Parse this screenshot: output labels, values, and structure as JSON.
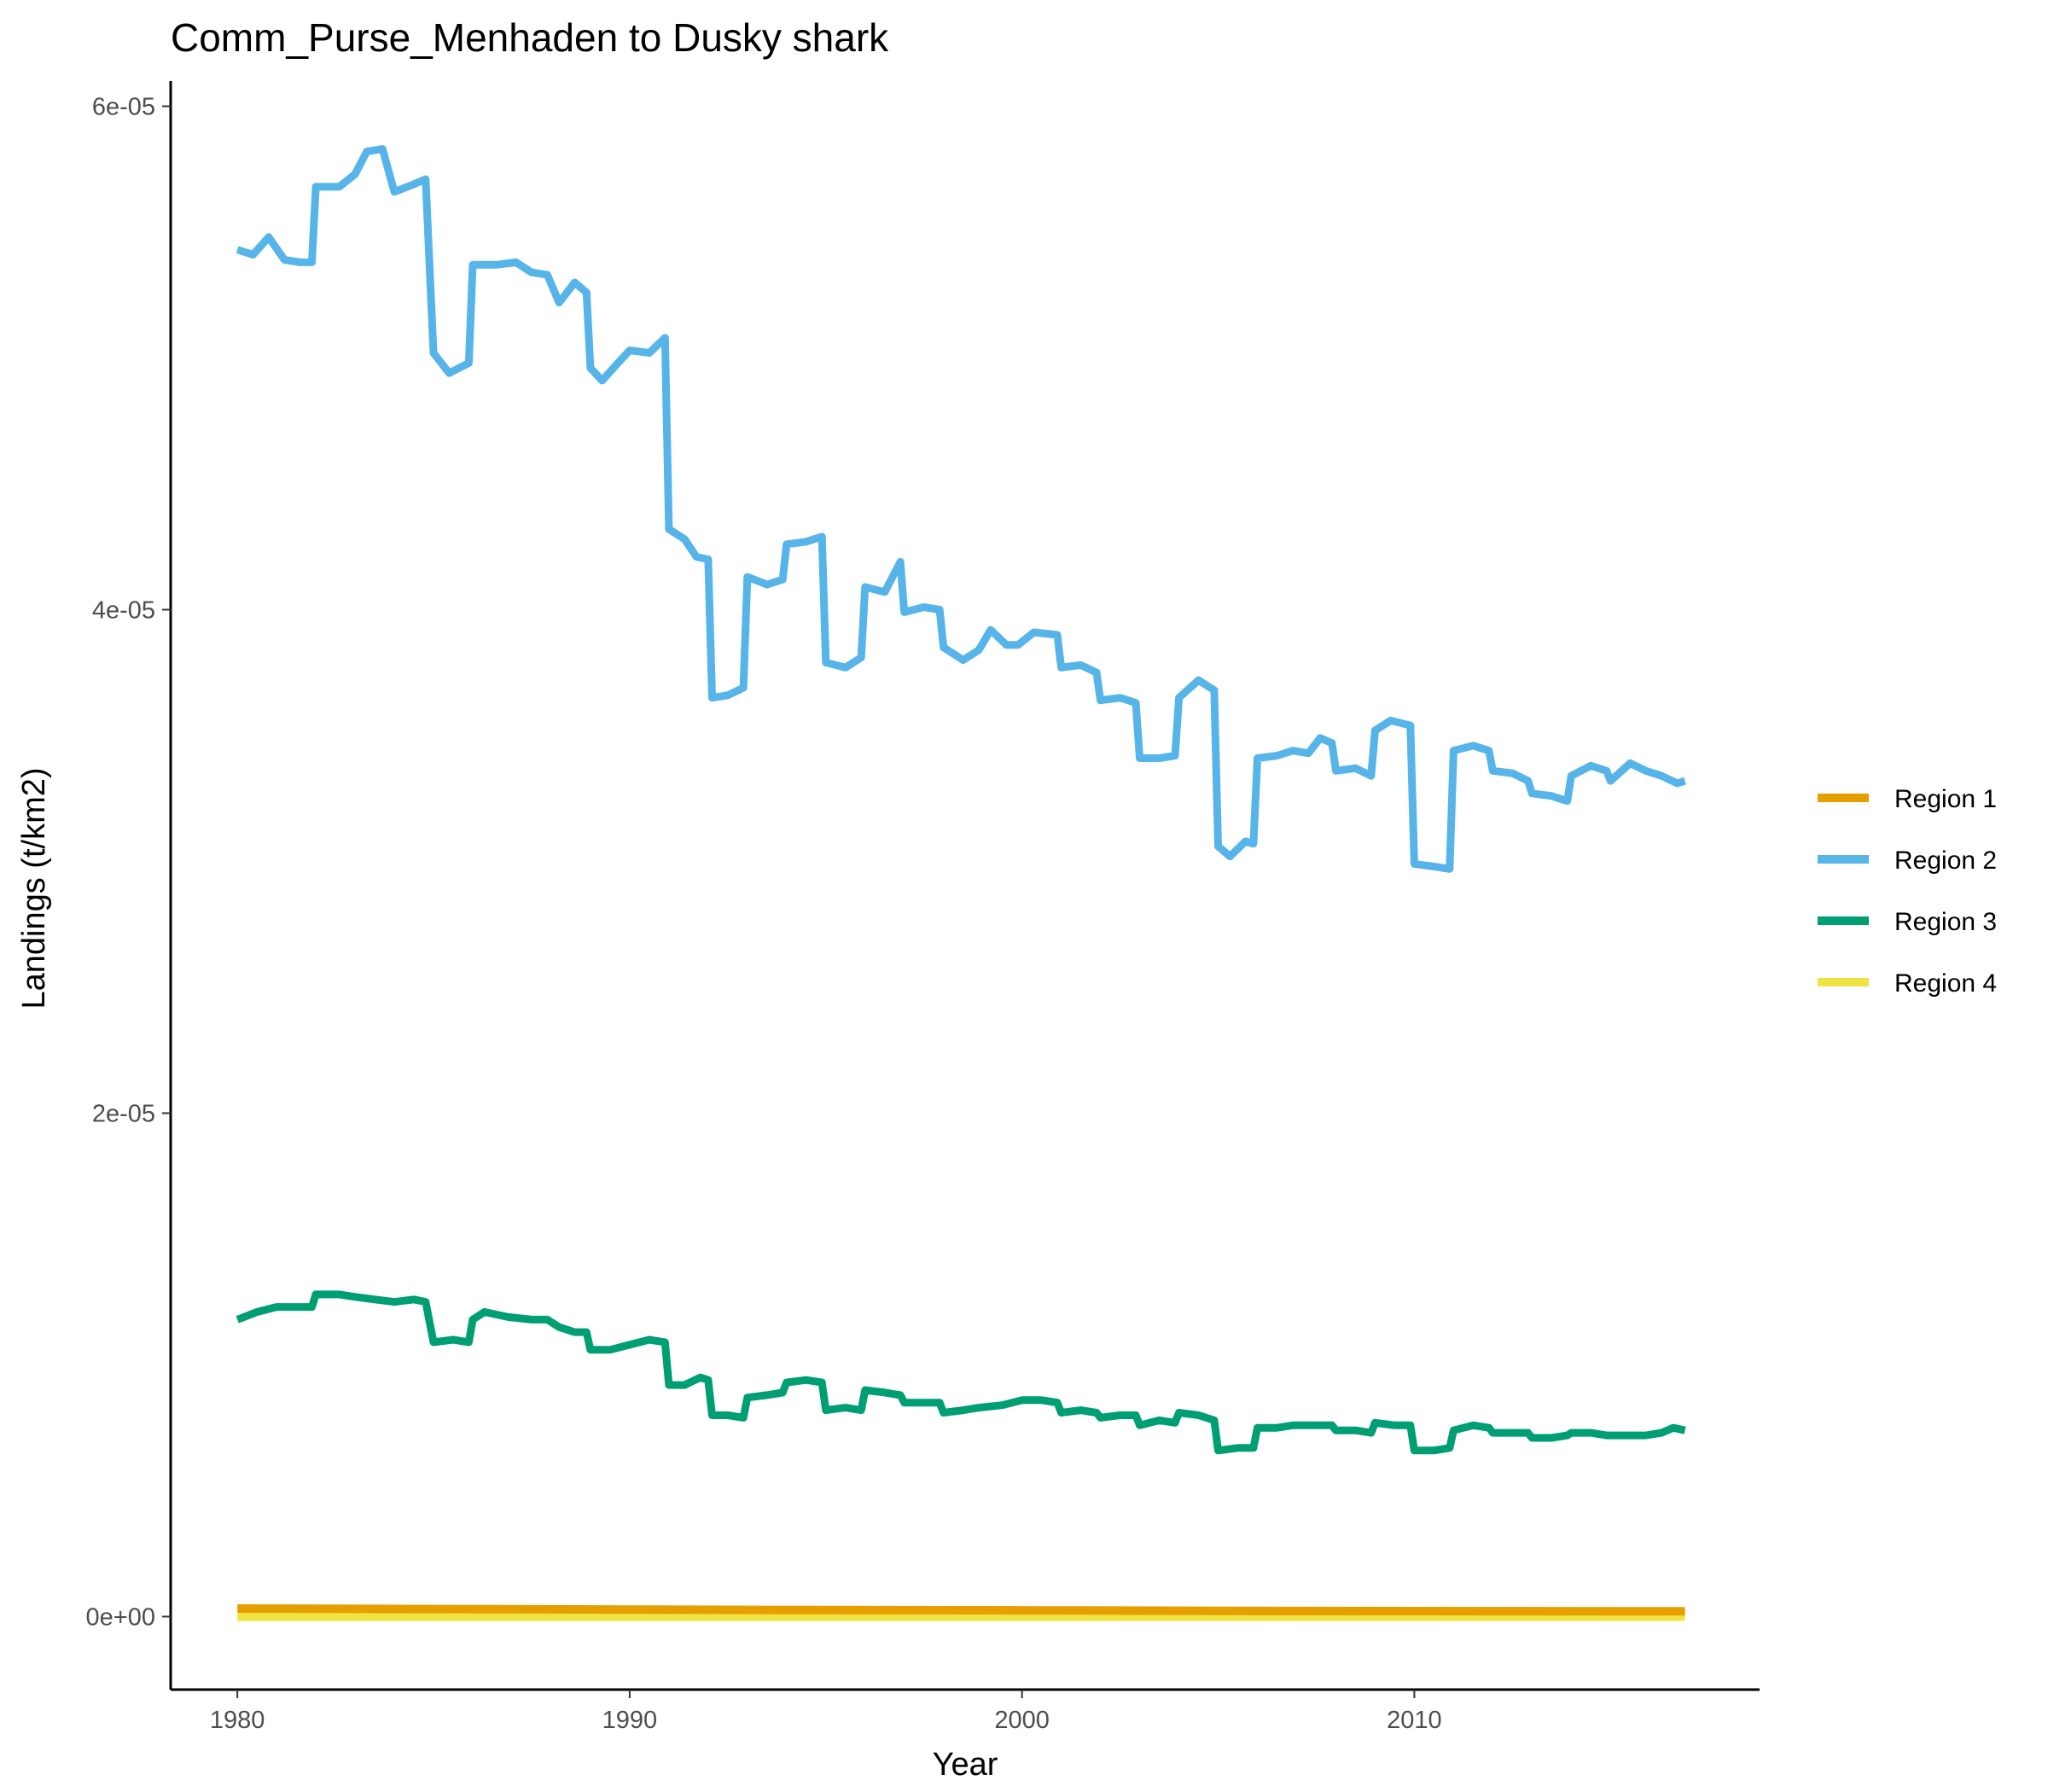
{
  "chart_data": {
    "type": "line",
    "title": "Comm_Purse_Menhaden to Dusky shark",
    "xlabel": "Year",
    "ylabel": "Landings (t/km2)",
    "xlim": [
      1978.3,
      2018.8
    ],
    "ylim": [
      -2.9e-06,
      6.1e-05
    ],
    "x_ticks": [
      1980,
      1990,
      2000,
      2010
    ],
    "y_ticks": [
      {
        "value": 0,
        "label": "0e+00"
      },
      {
        "value": 2e-05,
        "label": "2e-05"
      },
      {
        "value": 4e-05,
        "label": "4e-05"
      },
      {
        "value": 6e-05,
        "label": "6e-05"
      }
    ],
    "grid": false,
    "legend_position": "right",
    "series": [
      {
        "name": "Region 1",
        "color": "#E69F00",
        "points": [
          [
            1980.0,
            3.2e-07
          ],
          [
            1985.0,
            3e-07
          ],
          [
            1990.0,
            2.8e-07
          ],
          [
            1995.0,
            2.6e-07
          ],
          [
            2000.0,
            2.5e-07
          ],
          [
            2005.0,
            2.3e-07
          ],
          [
            2010.0,
            2.2e-07
          ],
          [
            2016.9,
            2.1e-07
          ]
        ]
      },
      {
        "name": "Region 2",
        "color": "#56B4E9",
        "points": [
          [
            1980.0,
            5.43e-05
          ],
          [
            1980.4,
            5.41e-05
          ],
          [
            1980.8,
            5.48e-05
          ],
          [
            1981.2,
            5.39e-05
          ],
          [
            1981.6,
            5.38e-05
          ],
          [
            1981.9,
            5.38e-05
          ],
          [
            1982.0,
            5.68e-05
          ],
          [
            1982.6,
            5.68e-05
          ],
          [
            1983.0,
            5.73e-05
          ],
          [
            1983.3,
            5.82e-05
          ],
          [
            1983.7,
            5.83e-05
          ],
          [
            1984.0,
            5.66e-05
          ],
          [
            1984.5,
            5.69e-05
          ],
          [
            1984.8,
            5.71e-05
          ],
          [
            1985.0,
            5.02e-05
          ],
          [
            1985.4,
            4.94e-05
          ],
          [
            1985.9,
            4.98e-05
          ],
          [
            1986.0,
            5.37e-05
          ],
          [
            1986.6,
            5.37e-05
          ],
          [
            1987.1,
            5.38e-05
          ],
          [
            1987.5,
            5.34e-05
          ],
          [
            1987.9,
            5.33e-05
          ],
          [
            1988.2,
            5.22e-05
          ],
          [
            1988.6,
            5.3e-05
          ],
          [
            1988.9,
            5.26e-05
          ],
          [
            1989.0,
            4.96e-05
          ],
          [
            1989.3,
            4.91e-05
          ],
          [
            1989.7,
            4.98e-05
          ],
          [
            1990.0,
            5.03e-05
          ],
          [
            1990.5,
            5.02e-05
          ],
          [
            1990.9,
            5.08e-05
          ],
          [
            1991.0,
            4.32e-05
          ],
          [
            1991.4,
            4.28e-05
          ],
          [
            1991.7,
            4.21e-05
          ],
          [
            1992.0,
            4.2e-05
          ],
          [
            1992.1,
            3.65e-05
          ],
          [
            1992.5,
            3.66e-05
          ],
          [
            1992.9,
            3.69e-05
          ],
          [
            1993.0,
            4.13e-05
          ],
          [
            1993.5,
            4.1e-05
          ],
          [
            1993.9,
            4.12e-05
          ],
          [
            1994.0,
            4.26e-05
          ],
          [
            1994.5,
            4.27e-05
          ],
          [
            1994.9,
            4.29e-05
          ],
          [
            1995.0,
            3.79e-05
          ],
          [
            1995.5,
            3.77e-05
          ],
          [
            1995.9,
            3.81e-05
          ],
          [
            1996.0,
            4.09e-05
          ],
          [
            1996.5,
            4.07e-05
          ],
          [
            1996.9,
            4.19e-05
          ],
          [
            1997.0,
            3.99e-05
          ],
          [
            1997.5,
            4.01e-05
          ],
          [
            1997.9,
            4e-05
          ],
          [
            1998.0,
            3.85e-05
          ],
          [
            1998.5,
            3.8e-05
          ],
          [
            1998.9,
            3.84e-05
          ],
          [
            1999.2,
            3.92e-05
          ],
          [
            1999.6,
            3.86e-05
          ],
          [
            1999.9,
            3.86e-05
          ],
          [
            2000.3,
            3.91e-05
          ],
          [
            2000.9,
            3.9e-05
          ],
          [
            2001.0,
            3.77e-05
          ],
          [
            2001.5,
            3.78e-05
          ],
          [
            2001.9,
            3.75e-05
          ],
          [
            2002.0,
            3.64e-05
          ],
          [
            2002.5,
            3.65e-05
          ],
          [
            2002.9,
            3.63e-05
          ],
          [
            2003.0,
            3.41e-05
          ],
          [
            2003.5,
            3.41e-05
          ],
          [
            2003.9,
            3.42e-05
          ],
          [
            2004.0,
            3.65e-05
          ],
          [
            2004.5,
            3.72e-05
          ],
          [
            2004.9,
            3.68e-05
          ],
          [
            2005.0,
            3.06e-05
          ],
          [
            2005.3,
            3.02e-05
          ],
          [
            2005.7,
            3.08e-05
          ],
          [
            2005.9,
            3.07e-05
          ],
          [
            2006.0,
            3.41e-05
          ],
          [
            2006.5,
            3.42e-05
          ],
          [
            2006.9,
            3.44e-05
          ],
          [
            2007.3,
            3.43e-05
          ],
          [
            2007.6,
            3.49e-05
          ],
          [
            2007.9,
            3.47e-05
          ],
          [
            2008.0,
            3.36e-05
          ],
          [
            2008.5,
            3.37e-05
          ],
          [
            2008.9,
            3.34e-05
          ],
          [
            2009.0,
            3.52e-05
          ],
          [
            2009.4,
            3.56e-05
          ],
          [
            2009.9,
            3.54e-05
          ],
          [
            2010.0,
            2.99e-05
          ],
          [
            2010.5,
            2.98e-05
          ],
          [
            2010.9,
            2.97e-05
          ],
          [
            2011.0,
            3.44e-05
          ],
          [
            2011.5,
            3.46e-05
          ],
          [
            2011.9,
            3.44e-05
          ],
          [
            2012.0,
            3.36e-05
          ],
          [
            2012.5,
            3.35e-05
          ],
          [
            2012.9,
            3.32e-05
          ],
          [
            2013.0,
            3.27e-05
          ],
          [
            2013.5,
            3.26e-05
          ],
          [
            2013.9,
            3.24e-05
          ],
          [
            2014.0,
            3.34e-05
          ],
          [
            2014.5,
            3.38e-05
          ],
          [
            2014.9,
            3.36e-05
          ],
          [
            2015.0,
            3.32e-05
          ],
          [
            2015.5,
            3.39e-05
          ],
          [
            2015.9,
            3.36e-05
          ],
          [
            2016.3,
            3.34e-05
          ],
          [
            2016.7,
            3.31e-05
          ],
          [
            2016.9,
            3.32e-05
          ]
        ]
      },
      {
        "name": "Region 3",
        "color": "#009E73",
        "points": [
          [
            1980.0,
            1.18e-05
          ],
          [
            1980.5,
            1.21e-05
          ],
          [
            1981.0,
            1.23e-05
          ],
          [
            1981.6,
            1.23e-05
          ],
          [
            1981.9,
            1.23e-05
          ],
          [
            1982.0,
            1.28e-05
          ],
          [
            1982.6,
            1.28e-05
          ],
          [
            1983.0,
            1.27e-05
          ],
          [
            1983.5,
            1.26e-05
          ],
          [
            1984.0,
            1.25e-05
          ],
          [
            1984.5,
            1.26e-05
          ],
          [
            1984.8,
            1.25e-05
          ],
          [
            1985.0,
            1.09e-05
          ],
          [
            1985.5,
            1.1e-05
          ],
          [
            1985.9,
            1.09e-05
          ],
          [
            1986.0,
            1.18e-05
          ],
          [
            1986.3,
            1.21e-05
          ],
          [
            1986.9,
            1.19e-05
          ],
          [
            1987.5,
            1.18e-05
          ],
          [
            1987.9,
            1.18e-05
          ],
          [
            1988.2,
            1.15e-05
          ],
          [
            1988.6,
            1.13e-05
          ],
          [
            1988.9,
            1.13e-05
          ],
          [
            1989.0,
            1.06e-05
          ],
          [
            1989.5,
            1.06e-05
          ],
          [
            1990.0,
            1.08e-05
          ],
          [
            1990.5,
            1.1e-05
          ],
          [
            1990.9,
            1.09e-05
          ],
          [
            1991.0,
            9.2e-06
          ],
          [
            1991.4,
            9.2e-06
          ],
          [
            1991.8,
            9.5e-06
          ],
          [
            1992.0,
            9.4e-06
          ],
          [
            1992.1,
            8e-06
          ],
          [
            1992.5,
            8e-06
          ],
          [
            1992.9,
            7.9e-06
          ],
          [
            1993.0,
            8.7e-06
          ],
          [
            1993.5,
            8.8e-06
          ],
          [
            1993.9,
            8.9e-06
          ],
          [
            1994.0,
            9.3e-06
          ],
          [
            1994.5,
            9.4e-06
          ],
          [
            1994.9,
            9.3e-06
          ],
          [
            1995.0,
            8.2e-06
          ],
          [
            1995.5,
            8.3e-06
          ],
          [
            1995.9,
            8.2e-06
          ],
          [
            1996.0,
            9e-06
          ],
          [
            1996.5,
            8.9e-06
          ],
          [
            1996.9,
            8.8e-06
          ],
          [
            1997.0,
            8.5e-06
          ],
          [
            1997.5,
            8.5e-06
          ],
          [
            1997.9,
            8.5e-06
          ],
          [
            1998.0,
            8.1e-06
          ],
          [
            1998.5,
            8.2e-06
          ],
          [
            1998.9,
            8.3e-06
          ],
          [
            1999.5,
            8.4e-06
          ],
          [
            2000.0,
            8.6e-06
          ],
          [
            2000.5,
            8.6e-06
          ],
          [
            2000.9,
            8.5e-06
          ],
          [
            2001.0,
            8.1e-06
          ],
          [
            2001.5,
            8.2e-06
          ],
          [
            2001.9,
            8.1e-06
          ],
          [
            2002.0,
            7.9e-06
          ],
          [
            2002.5,
            8e-06
          ],
          [
            2002.9,
            8e-06
          ],
          [
            2003.0,
            7.6e-06
          ],
          [
            2003.5,
            7.8e-06
          ],
          [
            2003.9,
            7.7e-06
          ],
          [
            2004.0,
            8.1e-06
          ],
          [
            2004.5,
            8e-06
          ],
          [
            2004.9,
            7.8e-06
          ],
          [
            2005.0,
            6.6e-06
          ],
          [
            2005.5,
            6.7e-06
          ],
          [
            2005.9,
            6.7e-06
          ],
          [
            2006.0,
            7.5e-06
          ],
          [
            2006.5,
            7.5e-06
          ],
          [
            2006.9,
            7.6e-06
          ],
          [
            2007.5,
            7.6e-06
          ],
          [
            2007.9,
            7.6e-06
          ],
          [
            2008.0,
            7.4e-06
          ],
          [
            2008.5,
            7.4e-06
          ],
          [
            2008.9,
            7.3e-06
          ],
          [
            2009.0,
            7.7e-06
          ],
          [
            2009.5,
            7.6e-06
          ],
          [
            2009.9,
            7.6e-06
          ],
          [
            2010.0,
            6.6e-06
          ],
          [
            2010.5,
            6.6e-06
          ],
          [
            2010.9,
            6.7e-06
          ],
          [
            2011.0,
            7.4e-06
          ],
          [
            2011.5,
            7.6e-06
          ],
          [
            2011.9,
            7.5e-06
          ],
          [
            2012.0,
            7.3e-06
          ],
          [
            2012.5,
            7.3e-06
          ],
          [
            2012.9,
            7.3e-06
          ],
          [
            2013.0,
            7.1e-06
          ],
          [
            2013.5,
            7.1e-06
          ],
          [
            2013.9,
            7.2e-06
          ],
          [
            2014.0,
            7.3e-06
          ],
          [
            2014.5,
            7.3e-06
          ],
          [
            2014.9,
            7.2e-06
          ],
          [
            2015.0,
            7.2e-06
          ],
          [
            2015.5,
            7.2e-06
          ],
          [
            2015.9,
            7.2e-06
          ],
          [
            2016.3,
            7.3e-06
          ],
          [
            2016.6,
            7.5e-06
          ],
          [
            2016.9,
            7.4e-06
          ]
        ]
      },
      {
        "name": "Region 4",
        "color": "#F0E442",
        "points": [
          [
            1980.0,
            0.0
          ],
          [
            1990.0,
            0.0
          ],
          [
            2000.0,
            0.0
          ],
          [
            2010.0,
            0.0
          ],
          [
            2016.9,
            0.0
          ]
        ]
      }
    ]
  }
}
